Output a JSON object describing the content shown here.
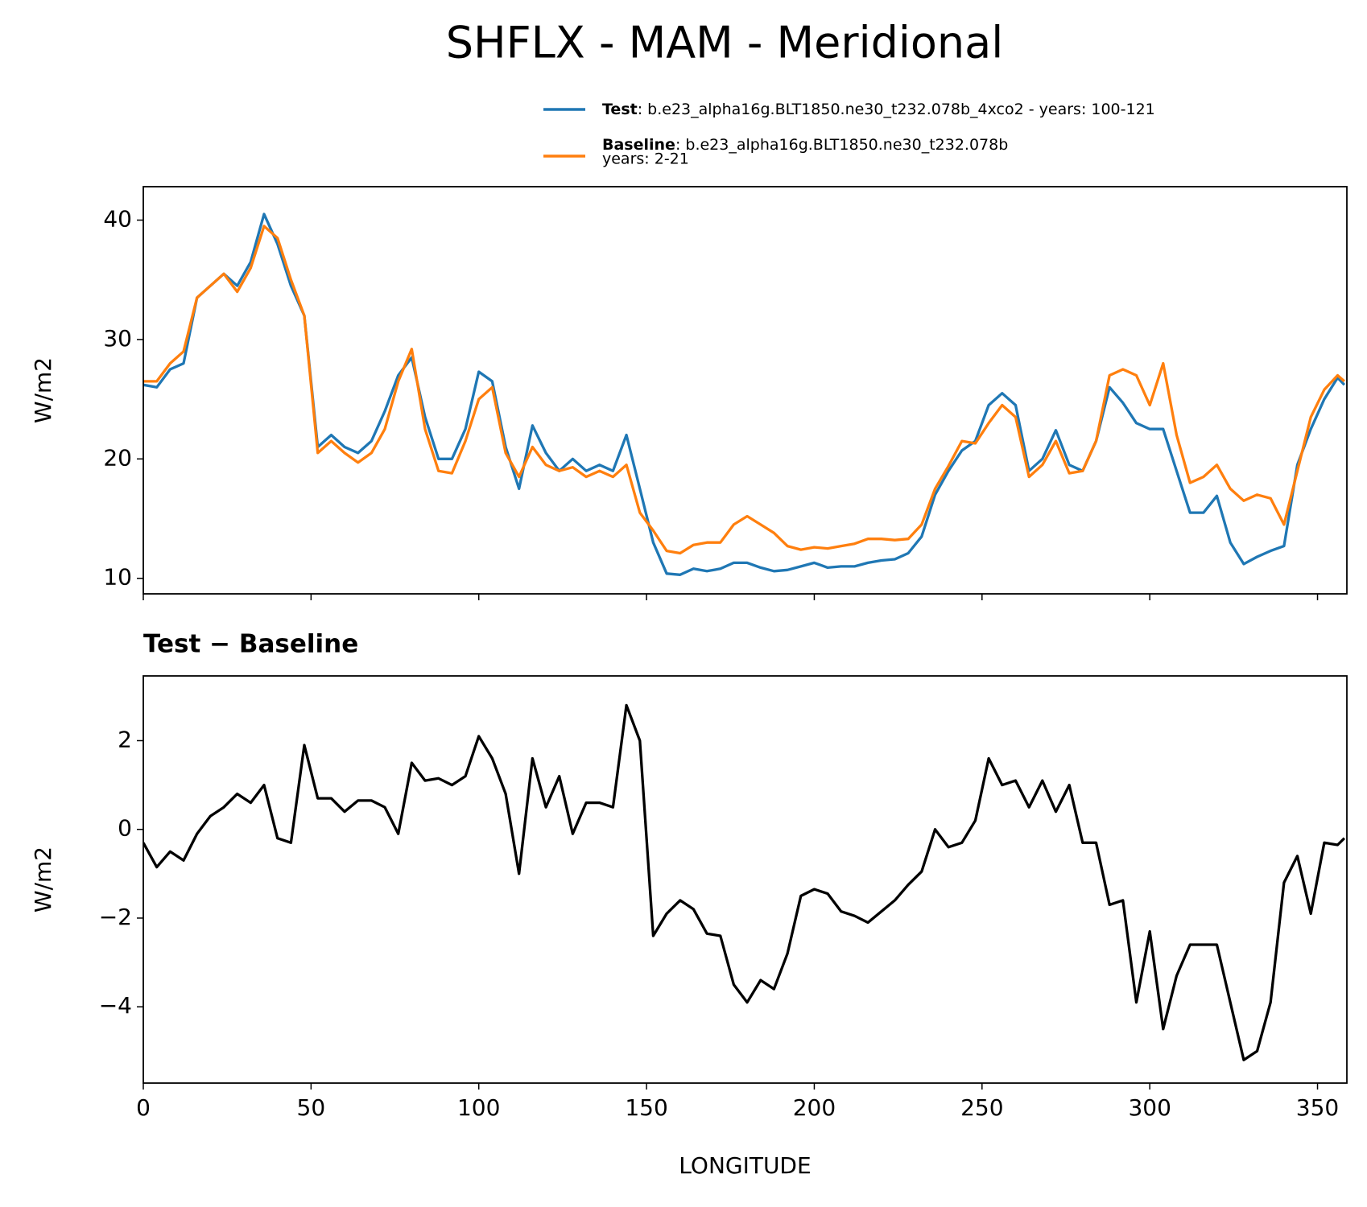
{
  "chart_data": [
    {
      "type": "line",
      "title": "SHFLX - MAM - Meridional",
      "ylabel": "W/m2",
      "x": [
        0,
        4,
        8,
        12,
        16,
        20,
        24,
        28,
        32,
        36,
        40,
        44,
        48,
        52,
        56,
        60,
        64,
        68,
        72,
        76,
        80,
        84,
        88,
        92,
        96,
        100,
        104,
        108,
        112,
        116,
        120,
        124,
        128,
        132,
        136,
        140,
        144,
        148,
        152,
        156,
        160,
        164,
        168,
        172,
        176,
        180,
        184,
        188,
        192,
        196,
        200,
        204,
        208,
        212,
        216,
        220,
        224,
        228,
        232,
        236,
        240,
        244,
        248,
        252,
        256,
        260,
        264,
        268,
        272,
        276,
        280,
        284,
        288,
        292,
        296,
        300,
        304,
        308,
        312,
        316,
        320,
        324,
        328,
        332,
        336,
        340,
        344,
        348,
        352,
        356,
        358
      ],
      "series": [
        {
          "name": "Test",
          "label_lines": [
            ": b.e23_alpha16g.BLT1850.ne30_t232.078b_4xco2 - years: 100-121"
          ],
          "color": "#1f77b4",
          "values": [
            26.2,
            26.0,
            27.5,
            28.0,
            33.5,
            34.5,
            35.5,
            34.5,
            36.5,
            40.5,
            38.0,
            34.5,
            32,
            21,
            22.0,
            21,
            20.5,
            21.5,
            24,
            27,
            28.5,
            23.5,
            20,
            20,
            22.5,
            27.3,
            26.5,
            21,
            17.5,
            22.8,
            20.5,
            19.0,
            20.0,
            19.0,
            19.5,
            19,
            22,
            17.5,
            13,
            10.4,
            10.3,
            10.8,
            10.6,
            10.8,
            11.3,
            11.3,
            10.9,
            10.6,
            10.7,
            11.0,
            11.3,
            10.9,
            11.0,
            11.0,
            11.3,
            11.5,
            11.6,
            12.1,
            13.5,
            17,
            19,
            20.7,
            21.5,
            24.5,
            25.5,
            24.5,
            19,
            20,
            22.4,
            19.5,
            19.0,
            21.5,
            26,
            24.7,
            23,
            22.5,
            22.5,
            19,
            15.5,
            15.5,
            16.9,
            13,
            11.2,
            11.8,
            12.3,
            12.7,
            19.5,
            22.5,
            25,
            26.8,
            26.2
          ]
        },
        {
          "name": "Baseline",
          "label_lines": [
            ": b.e23_alpha16g.BLT1850.ne30_t232.078b",
            "years: 2-21"
          ],
          "color": "#ff7f0e",
          "values": [
            26.5,
            26.5,
            28.0,
            29,
            33.5,
            34.5,
            35.5,
            34,
            36,
            39.5,
            38.5,
            35,
            32,
            20.5,
            21.5,
            20.5,
            19.7,
            20.5,
            22.5,
            26.5,
            29.2,
            22.5,
            19,
            18.8,
            21.5,
            25,
            26,
            20.5,
            18.5,
            21,
            19.5,
            19,
            19.3,
            18.5,
            19,
            18.5,
            19.5,
            15.5,
            14,
            12.3,
            12.1,
            12.8,
            13,
            13,
            14.5,
            15.2,
            14.5,
            13.8,
            12.7,
            12.4,
            12.6,
            12.5,
            12.7,
            12.9,
            13.3,
            13.3,
            13.2,
            13.3,
            14.5,
            17.5,
            19.4,
            21.5,
            21.3,
            23,
            24.5,
            23.5,
            18.5,
            19.5,
            21.5,
            18.8,
            19,
            21.5,
            27,
            27.5,
            27,
            24.5,
            28,
            22,
            18,
            18.5,
            19.5,
            17.5,
            16.5,
            17,
            16.7,
            14.5,
            19,
            23.5,
            25.8,
            27,
            26.5
          ]
        }
      ],
      "xlim": [
        0,
        358.75
      ],
      "xticks": [
        0,
        50,
        100,
        150,
        200,
        250,
        300,
        350
      ],
      "ylim": [
        8.7,
        42.8
      ],
      "yticks": [
        10,
        20,
        30,
        40
      ],
      "legend": "upper right"
    },
    {
      "type": "line",
      "title": "Test − Baseline",
      "ylabel": "W/m2",
      "xlabel": "LONGITUDE",
      "x": [
        0,
        4,
        8,
        12,
        16,
        20,
        24,
        28,
        32,
        36,
        40,
        44,
        48,
        52,
        56,
        60,
        64,
        68,
        72,
        76,
        80,
        84,
        88,
        92,
        96,
        100,
        104,
        108,
        112,
        116,
        120,
        124,
        128,
        132,
        136,
        140,
        144,
        148,
        152,
        156,
        160,
        164,
        168,
        172,
        176,
        180,
        184,
        188,
        192,
        196,
        200,
        204,
        208,
        212,
        216,
        220,
        224,
        228,
        232,
        236,
        240,
        244,
        248,
        252,
        256,
        260,
        264,
        268,
        272,
        276,
        280,
        284,
        288,
        292,
        296,
        300,
        304,
        308,
        312,
        316,
        320,
        324,
        328,
        332,
        336,
        340,
        344,
        348,
        352,
        356,
        358
      ],
      "series": [
        {
          "color": "#000000",
          "values": [
            -0.3,
            -0.85,
            -0.5,
            -0.7,
            -0.1,
            0.3,
            0.5,
            0.8,
            0.6,
            1.0,
            -0.2,
            -0.3,
            1.9,
            0.7,
            0.7,
            0.4,
            0.65,
            0.65,
            0.5,
            -0.1,
            1.5,
            1.1,
            1.15,
            1.0,
            1.2,
            2.1,
            1.6,
            0.8,
            -1.0,
            1.6,
            0.5,
            1.2,
            -0.1,
            0.6,
            0.6,
            0.5,
            2.8,
            2.0,
            -2.4,
            -1.9,
            -1.6,
            -1.8,
            -2.35,
            -2.4,
            -3.5,
            -3.9,
            -3.4,
            -3.6,
            -2.8,
            -1.5,
            -1.35,
            -1.45,
            -1.85,
            -1.95,
            -2.1,
            -1.85,
            -1.6,
            -1.25,
            -0.95,
            0.0,
            -0.4,
            -0.3,
            0.2,
            1.6,
            1.0,
            1.1,
            0.5,
            1.1,
            0.4,
            1.0,
            -0.3,
            -0.3,
            -1.7,
            -1.6,
            -3.9,
            -2.3,
            -4.5,
            -3.3,
            -2.6,
            -2.6,
            -2.6,
            -3.9,
            -5.2,
            -5.0,
            -3.9,
            -1.2,
            -0.6,
            -1.9,
            -0.3,
            -0.35,
            -0.2
          ]
        }
      ],
      "xlim": [
        0,
        358.75
      ],
      "xticks": [
        0,
        50,
        100,
        150,
        200,
        250,
        300,
        350
      ],
      "ylim": [
        -5.72,
        3.46
      ],
      "yticks": [
        {
          "value": -4,
          "label": "−4"
        },
        {
          "value": -2,
          "label": "−2"
        },
        0,
        2
      ]
    }
  ]
}
